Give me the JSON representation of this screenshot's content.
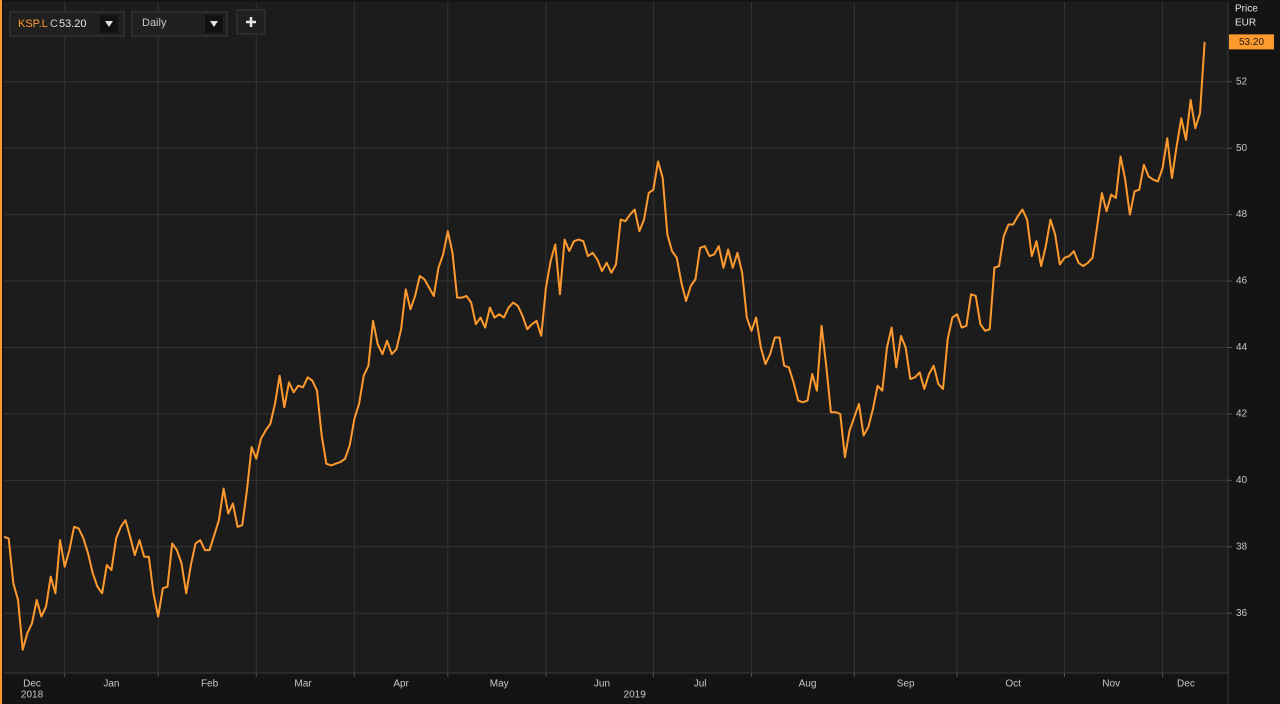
{
  "toolbar": {
    "symbol": "KSP.L",
    "close_prefix": "C",
    "close": "53.20",
    "interval": "Daily"
  },
  "chart_data": {
    "type": "line",
    "y_label": "Price",
    "y_unit": "EUR",
    "last_label": "53.20",
    "color": "#ff9a2e",
    "values": [
      38.3,
      38.25,
      36.9,
      36.4,
      34.9,
      35.4,
      35.7,
      36.4,
      35.9,
      36.2,
      37.1,
      36.6,
      38.2,
      37.4,
      37.9,
      38.6,
      38.55,
      38.25,
      37.8,
      37.2,
      36.8,
      36.6,
      37.45,
      37.3,
      38.25,
      38.6,
      38.8,
      38.3,
      37.75,
      38.2,
      37.7,
      37.7,
      36.6,
      35.9,
      36.75,
      36.8,
      38.1,
      37.9,
      37.5,
      36.6,
      37.45,
      38.1,
      38.2,
      37.9,
      37.9,
      38.35,
      38.8,
      39.75,
      39,
      39.3,
      38.6,
      38.65,
      39.7,
      41,
      40.65,
      41.25,
      41.5,
      41.7,
      42.3,
      43.15,
      42.2,
      42.95,
      42.65,
      42.85,
      42.8,
      43.1,
      43,
      42.7,
      41.35,
      40.5,
      40.45,
      40.5,
      40.55,
      40.65,
      41.05,
      41.85,
      42.3,
      43.15,
      43.45,
      44.8,
      44.1,
      43.8,
      44.2,
      43.8,
      43.95,
      44.55,
      45.75,
      45.15,
      45.55,
      46.15,
      46.05,
      45.8,
      45.55,
      46.4,
      46.8,
      47.5,
      46.85,
      45.5,
      45.5,
      45.55,
      45.35,
      44.7,
      44.9,
      44.6,
      45.2,
      44.9,
      45,
      44.9,
      45.2,
      45.35,
      45.25,
      44.95,
      44.55,
      44.7,
      44.8,
      44.35,
      45.8,
      46.6,
      47.1,
      45.6,
      47.25,
      46.9,
      47.2,
      47.25,
      47.2,
      46.75,
      46.85,
      46.65,
      46.3,
      46.55,
      46.25,
      46.5,
      47.85,
      47.8,
      48,
      48.15,
      47.5,
      47.85,
      48.65,
      48.75,
      49.6,
      49.1,
      47.4,
      46.9,
      46.7,
      45.95,
      45.4,
      45.85,
      46.05,
      47,
      47.05,
      46.75,
      46.8,
      47.05,
      46.4,
      46.95,
      46.4,
      46.85,
      46.25,
      44.9,
      44.5,
      44.9,
      44,
      43.5,
      43.8,
      44.3,
      44.3,
      43.45,
      43.4,
      42.95,
      42.4,
      42.35,
      42.4,
      43.2,
      42.7,
      44.65,
      43.45,
      42.05,
      42.05,
      42,
      40.7,
      41.5,
      41.9,
      42.3,
      41.35,
      41.6,
      42.15,
      42.85,
      42.7,
      44,
      44.6,
      43.4,
      44.35,
      44,
      43.05,
      43.1,
      43.25,
      42.75,
      43.2,
      43.45,
      42.9,
      42.75,
      44.25,
      44.9,
      45,
      44.6,
      44.65,
      45.6,
      45.55,
      44.7,
      44.5,
      44.55,
      46.4,
      46.45,
      47.35,
      47.7,
      47.7,
      47.95,
      48.15,
      47.85,
      46.75,
      47.2,
      46.45,
      47.05,
      47.85,
      47.4,
      46.5,
      46.7,
      46.75,
      46.9,
      46.55,
      46.45,
      46.55,
      46.7,
      47.65,
      48.65,
      48.1,
      48.6,
      48.5,
      49.75,
      49.05,
      48,
      48.7,
      48.75,
      49.5,
      49.15,
      49.05,
      49,
      49.4,
      50.3,
      49.1,
      50.05,
      50.9,
      50.25,
      51.45,
      50.6,
      51.05,
      53.2
    ],
    "xlim": [
      0,
      262
    ],
    "xticks": [
      13,
      33,
      54,
      75,
      95,
      116,
      139,
      160,
      182,
      204,
      227,
      248
    ],
    "x_labels": [
      {
        "value": 6,
        "label": "Dec"
      },
      {
        "value": 23,
        "label": "Jan"
      },
      {
        "value": 44,
        "label": "Feb"
      },
      {
        "value": 64,
        "label": "Mar"
      },
      {
        "value": 85,
        "label": "Apr"
      },
      {
        "value": 106,
        "label": "May"
      },
      {
        "value": 128,
        "label": "Jun"
      },
      {
        "value": 149,
        "label": "Jul"
      },
      {
        "value": 172,
        "label": "Aug"
      },
      {
        "value": 193,
        "label": "Sep"
      },
      {
        "value": 216,
        "label": "Oct"
      },
      {
        "value": 237,
        "label": "Nov"
      },
      {
        "value": 253,
        "label": "Dec"
      }
    ],
    "year_labels": [
      {
        "value": 6,
        "label": "2018"
      },
      {
        "value": 135,
        "label": "2019"
      }
    ],
    "ylim": [
      34.2,
      54.4
    ],
    "yticks": [
      36,
      38,
      40,
      42,
      44,
      46,
      48,
      50,
      52
    ],
    "grid": true
  }
}
